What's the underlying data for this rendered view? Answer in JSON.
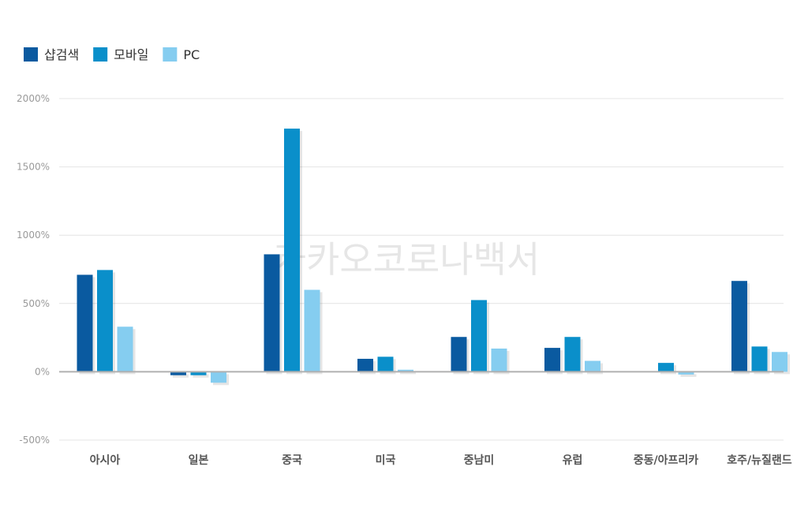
{
  "watermark": "카카오코로나백서",
  "chart_data": {
    "type": "bar",
    "categories": [
      "아시아",
      "일본",
      "중국",
      "미국",
      "중남미",
      "유럽",
      "중동/아프리카",
      "호주/뉴질랜드"
    ],
    "series": [
      {
        "name": "샵검색",
        "color": "#0a5aa0",
        "values": [
          710,
          -25,
          860,
          95,
          255,
          175,
          0,
          665
        ]
      },
      {
        "name": "모바일",
        "color": "#0a8fca",
        "values": [
          745,
          -25,
          1780,
          110,
          525,
          255,
          65,
          185
        ]
      },
      {
        "name": "PC",
        "color": "#85cdf0",
        "values": [
          330,
          -80,
          600,
          15,
          170,
          80,
          -20,
          145
        ]
      }
    ],
    "yticks": [
      "2000%",
      "1500%",
      "1000%",
      "500%",
      "0%",
      "-500%"
    ],
    "ytick_values": [
      2000,
      1500,
      1000,
      500,
      0,
      -500
    ],
    "ylim": [
      -500,
      2000
    ],
    "grid": true,
    "legend": "top-left"
  }
}
